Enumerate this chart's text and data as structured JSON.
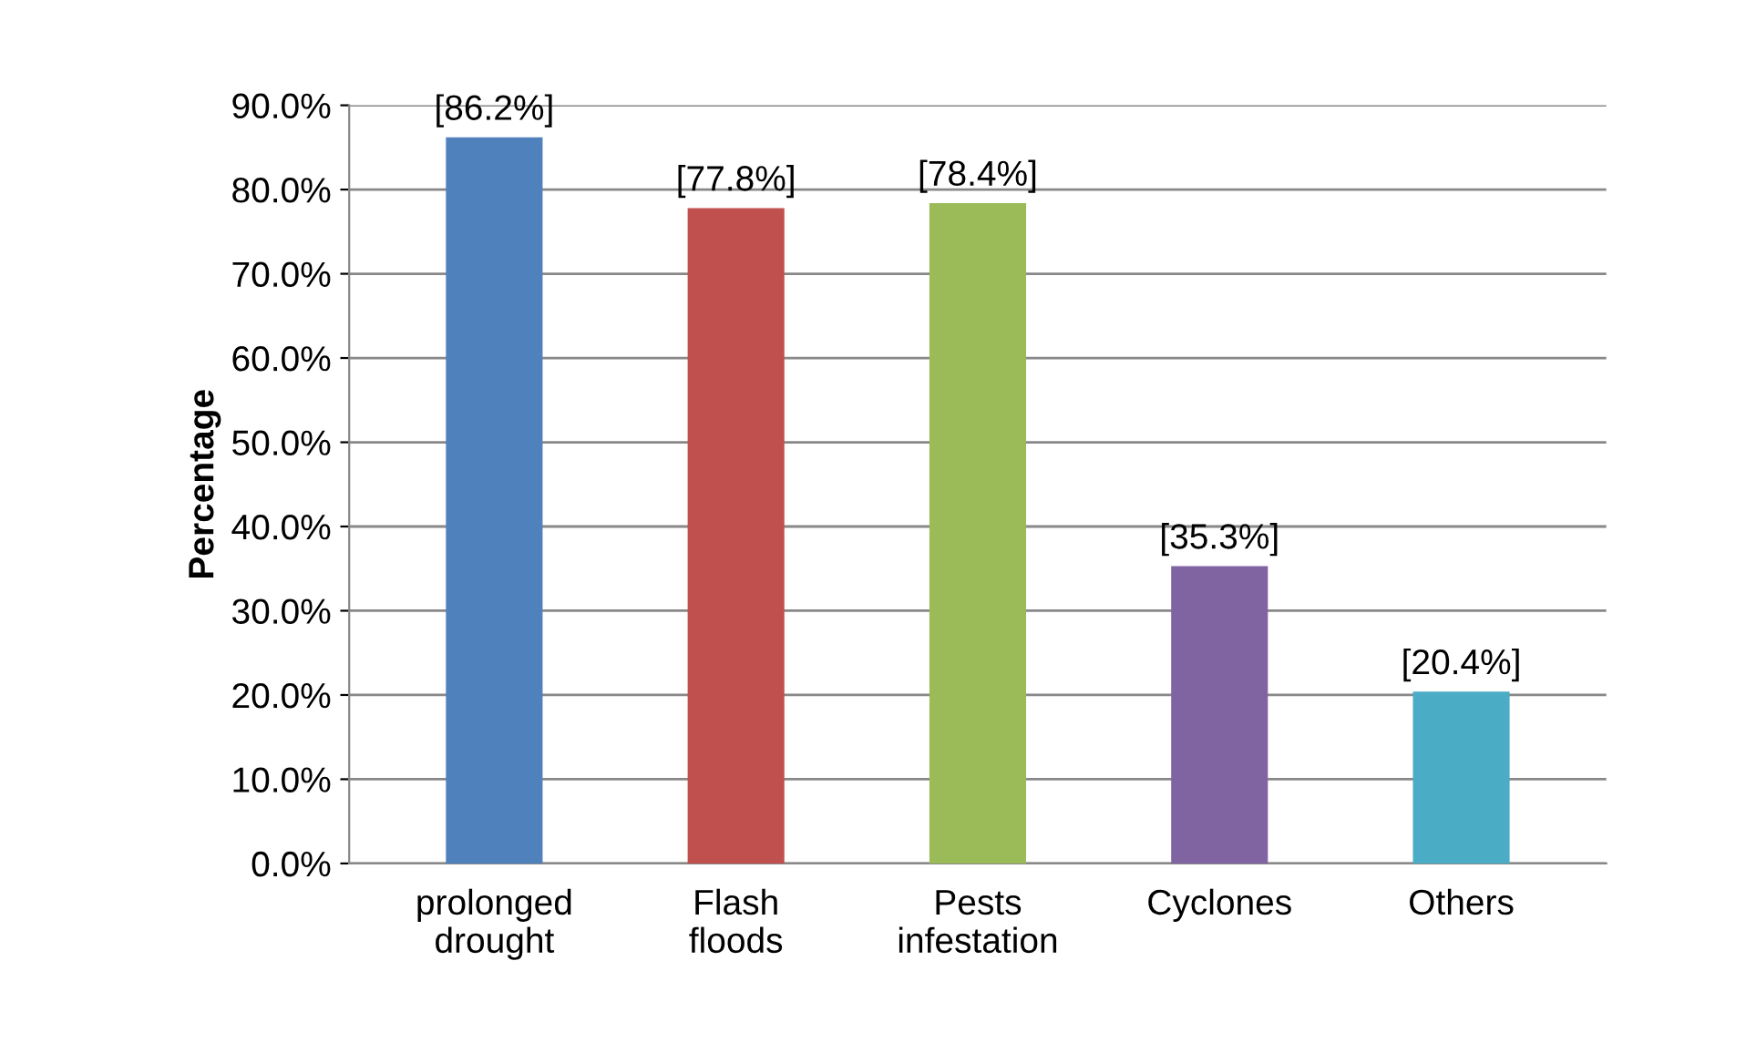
{
  "chart_data": {
    "type": "bar",
    "ylabel": "Percentage",
    "categories": [
      "prolonged\ndrought",
      "Flash\nfloods",
      "Pests\ninfestation",
      "Cyclones",
      "Others"
    ],
    "values": [
      86.2,
      77.8,
      78.4,
      35.3,
      20.4
    ],
    "colors": [
      "#4f81bd",
      "#c0504d",
      "#9bbb59",
      "#8064a2",
      "#4bacc6"
    ],
    "value_labels": [
      "[86.2%]",
      "[77.8%]",
      "[78.4%]",
      "[35.3%]",
      "[20.4%]"
    ],
    "ylim": [
      0,
      90
    ],
    "yticks": [
      {
        "value": 0,
        "label": "0.0%"
      },
      {
        "value": 10,
        "label": "10.0%"
      },
      {
        "value": 20,
        "label": "20.0%"
      },
      {
        "value": 30,
        "label": "30.0%"
      },
      {
        "value": 40,
        "label": "40.0%"
      },
      {
        "value": 50,
        "label": "50.0%"
      },
      {
        "value": 60,
        "label": "60.0%"
      },
      {
        "value": 70,
        "label": "70.0%"
      },
      {
        "value": 80,
        "label": "80.0%"
      },
      {
        "value": 90,
        "label": "90.0%"
      }
    ],
    "grid": "y"
  }
}
